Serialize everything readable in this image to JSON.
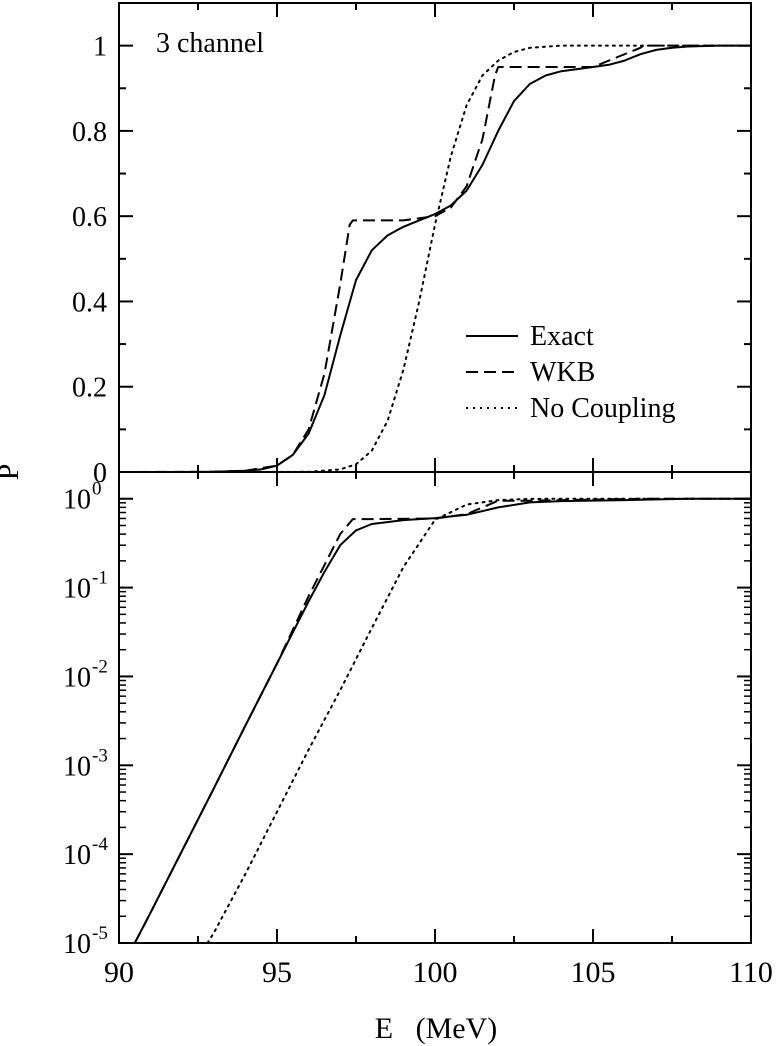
{
  "chart_data": [
    {
      "type": "line",
      "panel": "top",
      "scale": "linear",
      "annotation": "3 channel",
      "xlim": [
        90,
        110
      ],
      "ylim": [
        0,
        1.1
      ],
      "yticks": [
        0,
        0.2,
        0.4,
        0.6,
        0.8,
        1
      ],
      "ytick_labels": [
        "0",
        "0.2",
        "0.4",
        "0.6",
        "0.8",
        "1"
      ],
      "legend_position": "right-middle",
      "series": [
        {
          "name": "Exact",
          "style": "solid",
          "x": [
            90,
            92,
            93,
            94,
            94.5,
            95,
            95.5,
            96,
            96.5,
            97,
            97.5,
            98,
            98.5,
            99,
            99.5,
            100,
            100.5,
            101,
            101.5,
            102,
            102.5,
            103,
            103.5,
            104,
            104.5,
            105,
            105.5,
            106,
            106.5,
            107,
            107.5,
            108,
            109,
            110
          ],
          "y": [
            0,
            0,
            0.0005,
            0.003,
            0.006,
            0.015,
            0.04,
            0.09,
            0.18,
            0.32,
            0.45,
            0.52,
            0.555,
            0.575,
            0.59,
            0.605,
            0.625,
            0.66,
            0.72,
            0.8,
            0.87,
            0.91,
            0.93,
            0.94,
            0.945,
            0.95,
            0.955,
            0.965,
            0.98,
            0.99,
            0.995,
            0.998,
            1,
            1
          ]
        },
        {
          "name": "WKB",
          "style": "dashed",
          "x": [
            90,
            93,
            94,
            95,
            95.5,
            96,
            96.5,
            97,
            97.3,
            97.4,
            98,
            99,
            100,
            100.5,
            101,
            101.5,
            101.9,
            102,
            103,
            105,
            106.5,
            106.6,
            108,
            110
          ],
          "y": [
            0,
            0.0005,
            0.003,
            0.015,
            0.04,
            0.1,
            0.23,
            0.44,
            0.58,
            0.59,
            0.59,
            0.59,
            0.6,
            0.62,
            0.67,
            0.78,
            0.93,
            0.95,
            0.95,
            0.95,
            0.995,
            1,
            1,
            1
          ]
        },
        {
          "name": "No Coupling",
          "style": "dotted",
          "x": [
            90,
            96,
            97,
            97.5,
            98,
            98.5,
            99,
            99.5,
            100,
            100.5,
            101,
            101.5,
            102,
            102.5,
            103,
            104,
            106,
            110
          ],
          "y": [
            0,
            0.0005,
            0.006,
            0.018,
            0.05,
            0.12,
            0.24,
            0.4,
            0.58,
            0.74,
            0.86,
            0.93,
            0.965,
            0.985,
            0.995,
            1,
            1,
            1
          ]
        }
      ]
    },
    {
      "type": "line",
      "panel": "bottom",
      "scale": "log",
      "xlabel": "E   (MeV)",
      "ylabel": "P",
      "xlim": [
        90,
        110
      ],
      "xticks": [
        90,
        95,
        100,
        105,
        110
      ],
      "xtick_labels": [
        "90",
        "95",
        "100",
        "105",
        "110"
      ],
      "ylim": [
        1e-05,
        2
      ],
      "ytick_labels": [
        {
          "base": "10",
          "exp": "0",
          "value": 1
        },
        {
          "base": "10",
          "exp": "-1",
          "value": 0.1
        },
        {
          "base": "10",
          "exp": "-2",
          "value": 0.01
        },
        {
          "base": "10",
          "exp": "-3",
          "value": 0.001
        },
        {
          "base": "10",
          "exp": "-4",
          "value": 0.0001
        },
        {
          "base": "10",
          "exp": "-5",
          "value": 1e-05
        }
      ],
      "series": [
        {
          "name": "Exact",
          "style": "solid",
          "x": [
            90.5,
            91,
            92,
            93,
            94,
            95,
            96,
            96.5,
            97,
            97.5,
            98,
            99,
            100,
            101,
            102,
            103,
            104,
            106,
            108,
            110
          ],
          "y": [
            1e-05,
            2.2e-05,
            0.00011,
            0.00055,
            0.0028,
            0.014,
            0.07,
            0.15,
            0.3,
            0.44,
            0.52,
            0.575,
            0.605,
            0.66,
            0.8,
            0.91,
            0.94,
            0.965,
            0.998,
            1
          ]
        },
        {
          "name": "WKB",
          "style": "dashed",
          "x": [
            90.5,
            91,
            92,
            93,
            94,
            95,
            96,
            97,
            97.4,
            98,
            100,
            101,
            102,
            103,
            106.6,
            110
          ],
          "y": [
            1e-05,
            2.2e-05,
            0.00011,
            0.00055,
            0.0028,
            0.014,
            0.08,
            0.4,
            0.59,
            0.59,
            0.6,
            0.67,
            0.95,
            0.95,
            1,
            1
          ]
        },
        {
          "name": "No Coupling",
          "style": "dotted",
          "x": [
            92.8,
            93,
            94,
            95,
            96,
            97,
            98,
            99,
            100,
            101,
            102,
            103,
            104,
            110
          ],
          "y": [
            1e-05,
            1.3e-05,
            6e-05,
            0.0003,
            0.0015,
            0.007,
            0.035,
            0.17,
            0.58,
            0.86,
            0.965,
            0.995,
            1,
            1
          ]
        }
      ]
    }
  ]
}
